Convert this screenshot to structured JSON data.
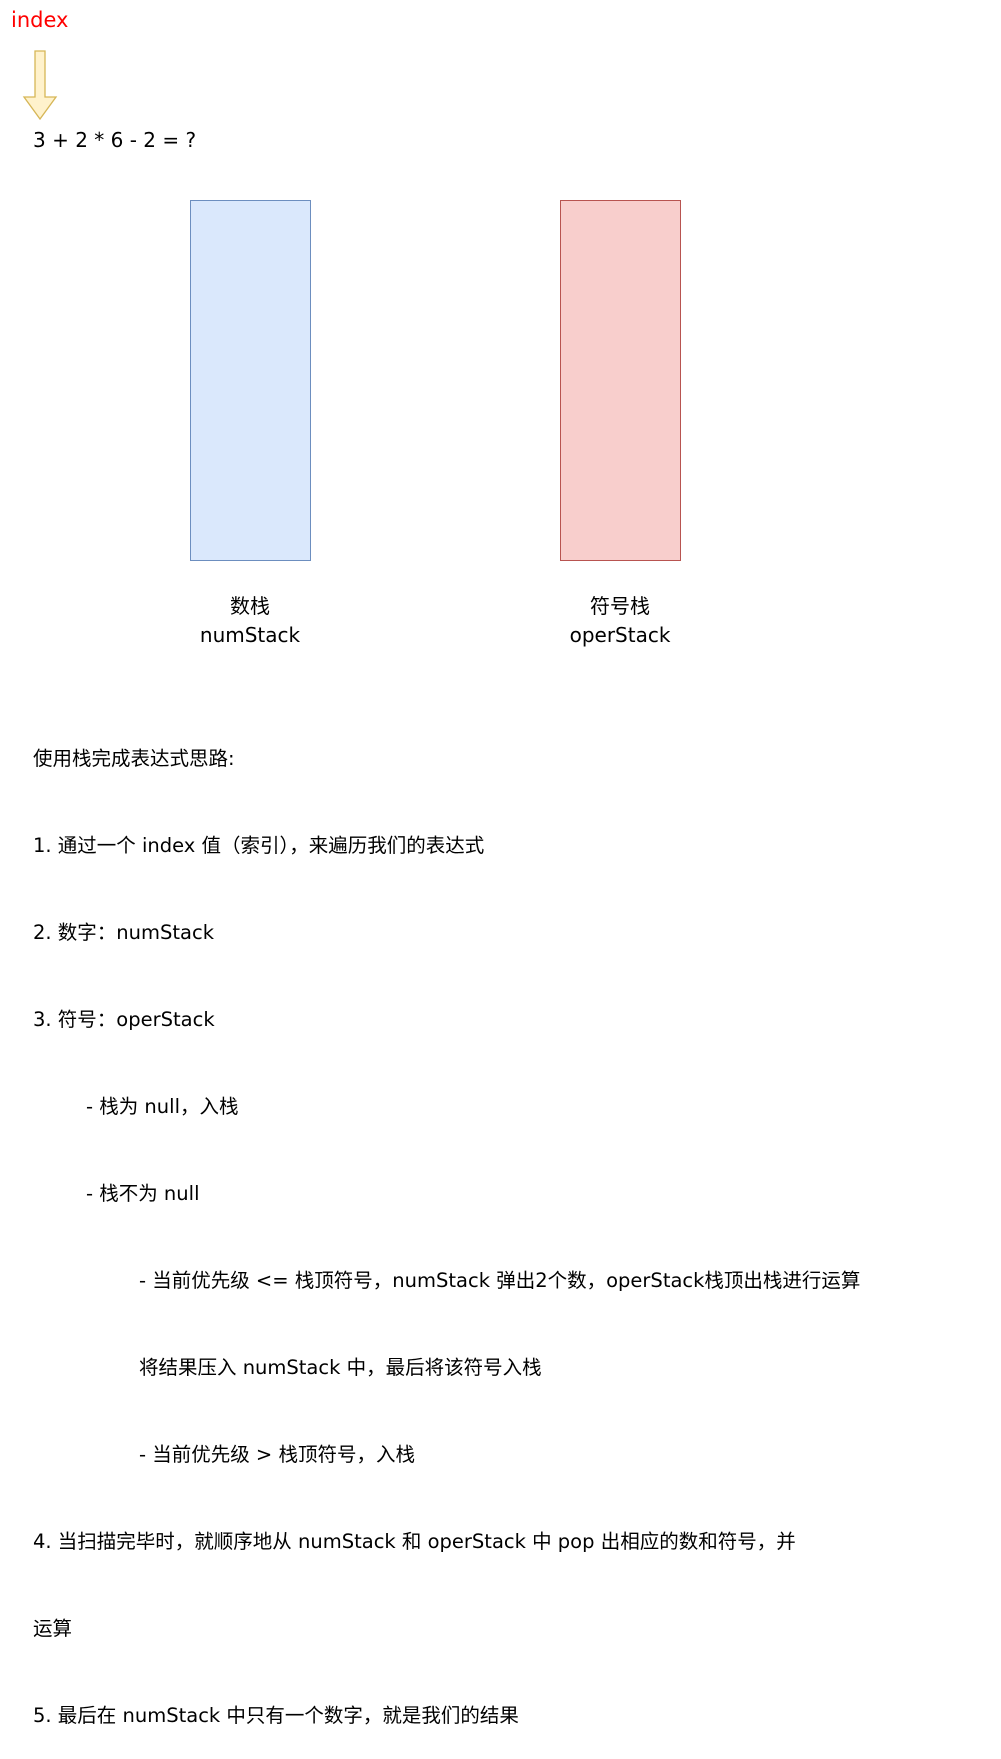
{
  "index_label": "index",
  "expression": "3 + 2 * 6 - 2 = ?",
  "stacks": {
    "num": {
      "title": "数栈",
      "name": "numStack",
      "fill": "#dae8fc",
      "stroke": "#6c8ebf"
    },
    "oper": {
      "title": "符号栈",
      "name": "operStack",
      "fill": "#f8cecc",
      "stroke": "#b85450"
    }
  },
  "arrow": {
    "fill": "#fff2cc",
    "stroke": "#d6b656"
  },
  "colors": {
    "index_label": "#ff0000"
  },
  "notes": [
    "使用栈完成表达式思路:",
    "1. 通过一个 index 值（索引），来遍历我们的表达式",
    "2. 数字：numStack",
    "3. 符号：operStack",
    "- 栈为 null，入栈",
    "- 栈不为 null",
    "- 当前优先级 <= 栈顶符号，numStack 弹出2个数，operStack栈顶出栈进行运算",
    "将结果压入 numStack 中，最后将该符号入栈",
    "- 当前优先级 > 栈顶符号，入栈",
    "4. 当扫描完毕时，就顺序地从 numStack 和 operStack 中 pop 出相应的数和符号，并",
    "运算",
    "5. 最后在 numStack 中只有一个数字，就是我们的结果"
  ]
}
